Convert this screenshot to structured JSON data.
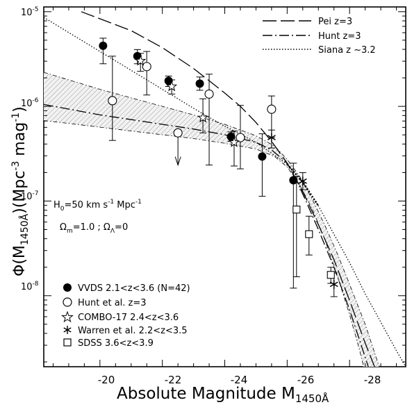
{
  "chart_data": {
    "type": "scatter",
    "xlabel": "Absolute Magnitude M",
    "xlabel_sub": "1450Å",
    "ylabel_prefix": "Φ(M",
    "ylabel_sub": "1450Å",
    "ylabel_suffix": ")(Mpc",
    "ylabel_sup1": "-3",
    "ylabel_mid": " mag",
    "ylabel_sup2": "-1",
    "ylabel_end": ")",
    "xlim": [
      -18.2,
      -29.8
    ],
    "ylim_log10": [
      -8.75,
      -4.95
    ],
    "y_scale": "log",
    "x_ticks": [
      "-20",
      "-22",
      "-24",
      "-26",
      "-28"
    ],
    "x_tick_values": [
      -20,
      -22,
      -24,
      -26,
      -28
    ],
    "y_ticks": [
      {
        "base": "10",
        "exp": "-5",
        "value_log": -5
      },
      {
        "base": "10",
        "exp": "-6",
        "value_log": -6
      },
      {
        "base": "10",
        "exp": "-7",
        "value_log": -7
      },
      {
        "base": "10",
        "exp": "-8",
        "value_log": -8
      }
    ],
    "legend_lines": [
      {
        "label": "Pei z=3",
        "style": "long-dash"
      },
      {
        "label": "Hunt z=3",
        "style": "dash-dot"
      },
      {
        "label": "Siana z ~3.2",
        "style": "dotted"
      }
    ],
    "legend_points": [
      {
        "marker": "filled-circle",
        "label": "VVDS 2.1<z<3.6 (N=42)"
      },
      {
        "marker": "open-circle",
        "label": "Hunt et al. z=3"
      },
      {
        "marker": "star",
        "label": "COMBO-17 2.4<z<3.6"
      },
      {
        "marker": "asterisk",
        "label": "Warren et al. 2.2<z<3.5"
      },
      {
        "marker": "open-square",
        "label": "SDSS 3.6<z<3.9"
      }
    ],
    "annotations": {
      "h0_a": "H",
      "h0_sub": "0",
      "h0_b": "=50 km s",
      "h0_sup": "-1",
      "h0_c": " Mpc",
      "h0_sup2": "-1",
      "om_a": "Ω",
      "om_sub": "m",
      "om_b": "=1.0 ; Ω",
      "om_sub2": "Λ",
      "om_c": "=0"
    },
    "series": [
      {
        "name": "VVDS 2.1<z<3.6 (N=42)",
        "marker": "filled-circle",
        "points": [
          {
            "x": -20.1,
            "logy": -5.36
          },
          {
            "x": -21.2,
            "logy": -5.47
          },
          {
            "x": -22.2,
            "logy": -5.73
          },
          {
            "x": -23.2,
            "logy": -5.76
          },
          {
            "x": -24.2,
            "logy": -6.32
          },
          {
            "x": -25.2,
            "logy": -6.53
          },
          {
            "x": -26.2,
            "logy": -6.78
          }
        ]
      },
      {
        "name": "Hunt et al. z=3",
        "marker": "open-circle",
        "points": [
          {
            "x": -20.4,
            "logy": -5.94,
            "err_up": -5.47,
            "err_down": -6.36
          },
          {
            "x": -21.5,
            "logy": -5.58,
            "err_up": -5.42,
            "err_down": -5.88
          },
          {
            "x": -22.5,
            "logy": -6.28,
            "upper_limit": true,
            "arrow_to": -6.62
          },
          {
            "x": -23.5,
            "logy": -5.87,
            "err_up": -5.66,
            "err_down": -6.62
          },
          {
            "x": -24.5,
            "logy": -6.33,
            "err_up": -5.99,
            "err_down": -6.66
          },
          {
            "x": -25.5,
            "logy": -6.03,
            "err_up": -5.89,
            "err_down": -6.33
          }
        ]
      },
      {
        "name": "COMBO-17 2.4<z<3.6",
        "marker": "star",
        "points": [
          {
            "x": -21.3,
            "logy": -5.52,
            "err_up": -5.44,
            "err_down": -5.63
          },
          {
            "x": -22.3,
            "logy": -5.79,
            "err_up": -5.72,
            "err_down": -5.87
          },
          {
            "x": -23.3,
            "logy": -6.12,
            "err_up": -5.92,
            "err_down": -6.28
          },
          {
            "x": -24.3,
            "logy": -6.38,
            "err_up": -6.26,
            "err_down": -6.63
          }
        ]
      },
      {
        "name": "Warren et al. 2.2<z<3.5",
        "marker": "asterisk",
        "points": [
          {
            "x": -25.5,
            "logy": -6.33,
            "err_up": -6.25,
            "err_down": -6.44
          },
          {
            "x": -26.5,
            "logy": -6.79,
            "err_up": -6.7,
            "err_down": -6.88
          },
          {
            "x": -27.5,
            "logy": -7.88,
            "err_up": -7.76,
            "err_down": -8.01
          }
        ]
      },
      {
        "name": "SDSS 3.6<z<3.9",
        "marker": "open-square",
        "points": [
          {
            "x": -26.3,
            "logy": -7.09,
            "err_up": -6.74,
            "err_down": -7.8
          },
          {
            "x": -26.7,
            "logy": -7.35,
            "err_up": -7.16,
            "err_down": -7.57
          },
          {
            "x": -27.4,
            "logy": -7.78,
            "err_up": -7.7,
            "err_down": -7.87
          }
        ]
      }
    ],
    "vvds_errors": [
      {
        "up": -5.28,
        "down": -5.55
      },
      {
        "up": -5.4,
        "down": -5.55
      },
      {
        "up": -5.68,
        "down": -5.79
      },
      {
        "up": -5.69,
        "down": -5.83
      },
      {
        "up": -6.27,
        "down": -6.37
      },
      {
        "up": -6.29,
        "down": -6.95
      },
      {
        "up": -6.6,
        "down": -7.92
      }
    ],
    "curves": {
      "pei": [
        [
          -19.4,
          -5.0
        ],
        [
          -21,
          -5.2
        ],
        [
          -22,
          -5.38
        ],
        [
          -23,
          -5.6
        ],
        [
          -24,
          -5.86
        ],
        [
          -24.5,
          -6.0
        ],
        [
          -25,
          -6.17
        ],
        [
          -25.5,
          -6.37
        ],
        [
          -26,
          -6.6
        ],
        [
          -26.5,
          -6.9
        ],
        [
          -27,
          -7.25
        ],
        [
          -27.5,
          -7.62
        ],
        [
          -28,
          -8.05
        ],
        [
          -28.5,
          -8.5
        ],
        [
          -28.8,
          -8.75
        ]
      ],
      "hunt": [
        [
          -18.2,
          -5.98
        ],
        [
          -20,
          -6.09
        ],
        [
          -22,
          -6.19
        ],
        [
          -23,
          -6.24
        ],
        [
          -24,
          -6.3
        ],
        [
          -25,
          -6.38
        ],
        [
          -25.5,
          -6.46
        ],
        [
          -26,
          -6.6
        ],
        [
          -26.3,
          -6.78
        ],
        [
          -26.6,
          -7.0
        ],
        [
          -27,
          -7.3
        ],
        [
          -27.5,
          -7.7
        ],
        [
          -28,
          -8.15
        ],
        [
          -28.6,
          -8.75
        ]
      ],
      "siana": [
        [
          -18.2,
          -5.06
        ],
        [
          -19,
          -5.22
        ],
        [
          -20,
          -5.42
        ],
        [
          -21,
          -5.62
        ],
        [
          -22,
          -5.82
        ],
        [
          -23,
          -6.02
        ],
        [
          -24,
          -6.21
        ],
        [
          -25,
          -6.38
        ],
        [
          -26,
          -6.61
        ],
        [
          -26.5,
          -6.8
        ],
        [
          -27,
          -7.05
        ],
        [
          -27.5,
          -7.35
        ],
        [
          -28,
          -7.65
        ],
        [
          -28.5,
          -7.98
        ],
        [
          -29,
          -8.28
        ],
        [
          -29.5,
          -8.58
        ],
        [
          -29.8,
          -8.75
        ]
      ],
      "band_upper": [
        [
          -18.2,
          -5.64
        ],
        [
          -19,
          -5.72
        ],
        [
          -20,
          -5.82
        ],
        [
          -21,
          -5.91
        ],
        [
          -22,
          -6.0
        ],
        [
          -23,
          -6.09
        ],
        [
          -24,
          -6.19
        ],
        [
          -25,
          -6.31
        ],
        [
          -25.6,
          -6.42
        ],
        [
          -26,
          -6.56
        ],
        [
          -26.4,
          -6.74
        ],
        [
          -26.8,
          -6.98
        ],
        [
          -27.2,
          -7.25
        ],
        [
          -27.6,
          -7.55
        ],
        [
          -28,
          -7.88
        ],
        [
          -28.5,
          -8.3
        ],
        [
          -28.95,
          -8.75
        ]
      ],
      "band_lower": [
        [
          -18.2,
          -6.15
        ],
        [
          -19,
          -6.18
        ],
        [
          -20,
          -6.22
        ],
        [
          -21,
          -6.26
        ],
        [
          -22,
          -6.3
        ],
        [
          -23,
          -6.34
        ],
        [
          -24,
          -6.39
        ],
        [
          -25,
          -6.45
        ],
        [
          -25.6,
          -6.53
        ],
        [
          -26,
          -6.64
        ],
        [
          -26.4,
          -6.83
        ],
        [
          -26.8,
          -7.08
        ],
        [
          -27.2,
          -7.4
        ],
        [
          -27.6,
          -7.78
        ],
        [
          -28,
          -8.2
        ],
        [
          -28.3,
          -8.55
        ],
        [
          -28.45,
          -8.75
        ]
      ]
    }
  }
}
